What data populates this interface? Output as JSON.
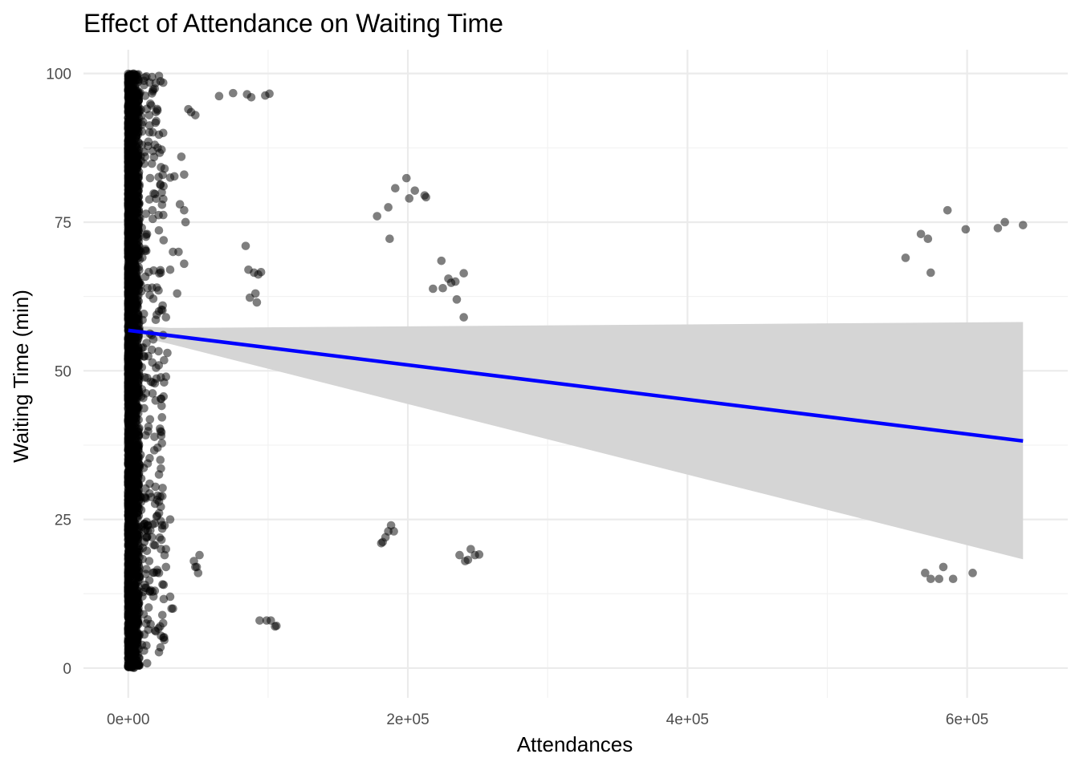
{
  "chart_data": {
    "type": "scatter",
    "title": "Effect of Attendance on Waiting Time",
    "xlabel": "Attendances",
    "ylabel": "Waiting Time (min)",
    "xlim": [
      -32000,
      672000
    ],
    "ylim": [
      -5,
      104
    ],
    "x_ticks": [
      0,
      200000,
      400000,
      600000
    ],
    "x_tick_labels": [
      "0e+00",
      "2e+05",
      "4e+05",
      "6e+05"
    ],
    "x_minor_ticks": [
      100000,
      300000,
      500000
    ],
    "y_ticks": [
      0,
      25,
      50,
      75,
      100
    ],
    "y_tick_labels": [
      "0",
      "25",
      "50",
      "75",
      "100"
    ],
    "y_minor_ticks": [
      12.5,
      37.5,
      62.5,
      87.5
    ],
    "grid": true,
    "legend": "none",
    "point_color": "#000000",
    "point_alpha": 0.5,
    "dense_cluster": {
      "description": "thousands of points",
      "x_range": [
        0,
        5000
      ],
      "y_range": [
        0,
        100
      ]
    },
    "points": [
      {
        "x": 13000,
        "y": 99.5
      },
      {
        "x": 17000,
        "y": 99.4
      },
      {
        "x": 22000,
        "y": 99.6
      },
      {
        "x": 15000,
        "y": 93
      },
      {
        "x": 20000,
        "y": 92
      },
      {
        "x": 25000,
        "y": 90
      },
      {
        "x": 19000,
        "y": 88
      },
      {
        "x": 26000,
        "y": 84
      },
      {
        "x": 30000,
        "y": 82.5
      },
      {
        "x": 33000,
        "y": 82.7
      },
      {
        "x": 12000,
        "y": 86
      },
      {
        "x": 24000,
        "y": 80
      },
      {
        "x": 38000,
        "y": 86
      },
      {
        "x": 43000,
        "y": 94
      },
      {
        "x": 45000,
        "y": 93.5
      },
      {
        "x": 48000,
        "y": 93
      },
      {
        "x": 37000,
        "y": 78
      },
      {
        "x": 40000,
        "y": 77
      },
      {
        "x": 36000,
        "y": 70
      },
      {
        "x": 40000,
        "y": 68
      },
      {
        "x": 41000,
        "y": 75
      },
      {
        "x": 32000,
        "y": 70
      },
      {
        "x": 30000,
        "y": 67
      },
      {
        "x": 35000,
        "y": 63
      },
      {
        "x": 27000,
        "y": 59
      },
      {
        "x": 25000,
        "y": 56
      },
      {
        "x": 28000,
        "y": 53
      },
      {
        "x": 27000,
        "y": 49
      },
      {
        "x": 22000,
        "y": 60
      },
      {
        "x": 40000,
        "y": 83
      },
      {
        "x": 65000,
        "y": 96.2
      },
      {
        "x": 75000,
        "y": 96.7
      },
      {
        "x": 85000,
        "y": 96.5
      },
      {
        "x": 88000,
        "y": 96
      },
      {
        "x": 98000,
        "y": 96.3
      },
      {
        "x": 101000,
        "y": 96.6
      },
      {
        "x": 84000,
        "y": 71
      },
      {
        "x": 86000,
        "y": 67
      },
      {
        "x": 90000,
        "y": 66.5
      },
      {
        "x": 93000,
        "y": 66.2
      },
      {
        "x": 87000,
        "y": 62.3
      },
      {
        "x": 91000,
        "y": 63
      },
      {
        "x": 92000,
        "y": 61.5
      },
      {
        "x": 95000,
        "y": 66.6
      },
      {
        "x": 178000,
        "y": 76
      },
      {
        "x": 186000,
        "y": 77.5
      },
      {
        "x": 191000,
        "y": 80.7
      },
      {
        "x": 199000,
        "y": 82.4
      },
      {
        "x": 205000,
        "y": 80.3
      },
      {
        "x": 201000,
        "y": 79
      },
      {
        "x": 212000,
        "y": 79.5
      },
      {
        "x": 213000,
        "y": 79.2
      },
      {
        "x": 187000,
        "y": 72.2
      },
      {
        "x": 224000,
        "y": 68.5
      },
      {
        "x": 218000,
        "y": 63.8
      },
      {
        "x": 225000,
        "y": 63.9
      },
      {
        "x": 229000,
        "y": 65.5
      },
      {
        "x": 231000,
        "y": 64.8
      },
      {
        "x": 234000,
        "y": 65
      },
      {
        "x": 240000,
        "y": 66.4
      },
      {
        "x": 235000,
        "y": 62
      },
      {
        "x": 240000,
        "y": 59
      },
      {
        "x": 556000,
        "y": 69
      },
      {
        "x": 567000,
        "y": 73
      },
      {
        "x": 572000,
        "y": 72.2
      },
      {
        "x": 574000,
        "y": 66.5
      },
      {
        "x": 586000,
        "y": 77
      },
      {
        "x": 599000,
        "y": 73.8
      },
      {
        "x": 622000,
        "y": 74
      },
      {
        "x": 627000,
        "y": 75
      },
      {
        "x": 640000,
        "y": 74.5
      },
      {
        "x": 14000,
        "y": 24
      },
      {
        "x": 17000,
        "y": 22
      },
      {
        "x": 21000,
        "y": 29
      },
      {
        "x": 22000,
        "y": 28
      },
      {
        "x": 26000,
        "y": 24
      },
      {
        "x": 30000,
        "y": 25
      },
      {
        "x": 15000,
        "y": 18
      },
      {
        "x": 22000,
        "y": 16
      },
      {
        "x": 26000,
        "y": 19
      },
      {
        "x": 27000,
        "y": 20
      },
      {
        "x": 27000,
        "y": 17
      },
      {
        "x": 30000,
        "y": 12
      },
      {
        "x": 31000,
        "y": 10
      },
      {
        "x": 32000,
        "y": 10
      },
      {
        "x": 12000,
        "y": 14
      },
      {
        "x": 19000,
        "y": 13
      },
      {
        "x": 47000,
        "y": 18
      },
      {
        "x": 48000,
        "y": 17
      },
      {
        "x": 50000,
        "y": 16
      },
      {
        "x": 51000,
        "y": 19
      },
      {
        "x": 49000,
        "y": 17
      },
      {
        "x": 94000,
        "y": 8
      },
      {
        "x": 99000,
        "y": 8
      },
      {
        "x": 102000,
        "y": 8
      },
      {
        "x": 105000,
        "y": 7
      },
      {
        "x": 106000,
        "y": 7.1
      },
      {
        "x": 181000,
        "y": 21
      },
      {
        "x": 184000,
        "y": 22
      },
      {
        "x": 186000,
        "y": 23
      },
      {
        "x": 188000,
        "y": 24
      },
      {
        "x": 190000,
        "y": 23
      },
      {
        "x": 182000,
        "y": 21.2
      },
      {
        "x": 237000,
        "y": 19
      },
      {
        "x": 241000,
        "y": 18
      },
      {
        "x": 243000,
        "y": 18.2
      },
      {
        "x": 245000,
        "y": 20
      },
      {
        "x": 248000,
        "y": 19
      },
      {
        "x": 251000,
        "y": 19.1
      },
      {
        "x": 570000,
        "y": 16
      },
      {
        "x": 574000,
        "y": 15
      },
      {
        "x": 580000,
        "y": 15
      },
      {
        "x": 583000,
        "y": 17
      },
      {
        "x": 590000,
        "y": 15
      },
      {
        "x": 604000,
        "y": 16
      }
    ],
    "regression": {
      "color": "#0000ff",
      "band_color": "#d5d5d5",
      "line": [
        [
          0,
          56.8
        ],
        [
          640000,
          38.2
        ]
      ],
      "ci_upper": [
        [
          0,
          57.6
        ],
        [
          30000,
          57.2
        ],
        [
          640000,
          58.2
        ]
      ],
      "ci_lower": [
        [
          0,
          56.1
        ],
        [
          30000,
          54.5
        ],
        [
          640000,
          18.3
        ]
      ]
    }
  }
}
